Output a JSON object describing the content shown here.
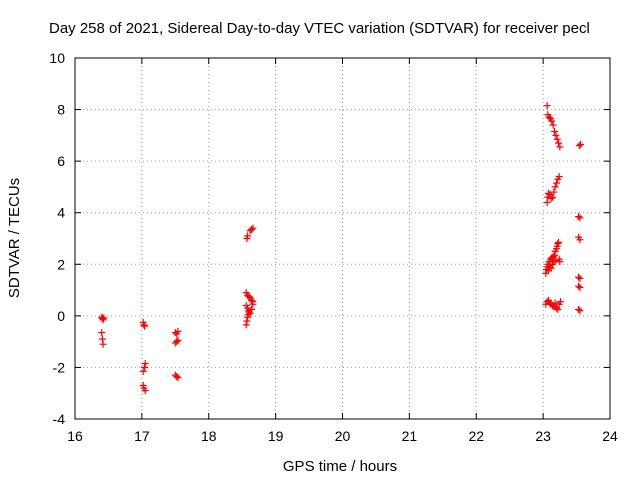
{
  "chart_data": {
    "type": "scatter",
    "title": "Day 258 of 2021, Sidereal Day-to-day VTEC variation (SDTVAR) for receiver pecl",
    "xlabel": "GPS time / hours",
    "ylabel": "SDTVAR / TECUs",
    "xlim": [
      16,
      24
    ],
    "ylim": [
      -4,
      10
    ],
    "xticks": [
      16,
      17,
      18,
      19,
      20,
      21,
      22,
      23,
      24
    ],
    "yticks": [
      -4,
      -2,
      0,
      2,
      4,
      6,
      8,
      10
    ],
    "grid": true,
    "marker": "+",
    "color": "#ff0000",
    "series": [
      {
        "name": "SDTVAR",
        "points": [
          [
            16.4,
            -0.05
          ],
          [
            16.41,
            -0.1
          ],
          [
            16.42,
            -0.15
          ],
          [
            16.43,
            -0.08
          ],
          [
            16.4,
            -0.65
          ],
          [
            16.41,
            -0.9
          ],
          [
            16.42,
            -1.1
          ],
          [
            17.02,
            -0.25
          ],
          [
            17.03,
            -0.35
          ],
          [
            17.04,
            -0.4
          ],
          [
            17.02,
            -2.15
          ],
          [
            17.04,
            -2.0
          ],
          [
            17.05,
            -1.85
          ],
          [
            17.02,
            -2.7
          ],
          [
            17.03,
            -2.8
          ],
          [
            17.05,
            -2.9
          ],
          [
            17.5,
            -0.65
          ],
          [
            17.52,
            -0.7
          ],
          [
            17.54,
            -0.6
          ],
          [
            17.5,
            -1.05
          ],
          [
            17.52,
            -1.0
          ],
          [
            17.54,
            -0.95
          ],
          [
            17.5,
            -2.3
          ],
          [
            17.52,
            -2.35
          ],
          [
            17.54,
            -2.4
          ],
          [
            18.57,
            3.0
          ],
          [
            18.58,
            3.1
          ],
          [
            18.62,
            3.3
          ],
          [
            18.64,
            3.35
          ],
          [
            18.66,
            3.4
          ],
          [
            18.56,
            0.9
          ],
          [
            18.58,
            0.8
          ],
          [
            18.6,
            0.75
          ],
          [
            18.62,
            0.7
          ],
          [
            18.64,
            0.6
          ],
          [
            18.66,
            0.55
          ],
          [
            18.56,
            0.4
          ],
          [
            18.58,
            0.3
          ],
          [
            18.6,
            0.2
          ],
          [
            18.62,
            0.1
          ],
          [
            18.64,
            0.25
          ],
          [
            18.66,
            0.45
          ],
          [
            18.56,
            -0.35
          ],
          [
            18.57,
            -0.2
          ],
          [
            18.58,
            -0.05
          ],
          [
            18.59,
            0.05
          ],
          [
            18.6,
            0.15
          ],
          [
            23.06,
            8.15
          ],
          [
            23.07,
            7.8
          ],
          [
            23.09,
            7.7
          ],
          [
            23.11,
            7.65
          ],
          [
            23.13,
            7.55
          ],
          [
            23.15,
            7.4
          ],
          [
            23.17,
            7.15
          ],
          [
            23.19,
            7.0
          ],
          [
            23.21,
            6.85
          ],
          [
            23.23,
            6.7
          ],
          [
            23.25,
            6.55
          ],
          [
            23.06,
            4.4
          ],
          [
            23.07,
            4.6
          ],
          [
            23.08,
            4.75
          ],
          [
            23.1,
            4.7
          ],
          [
            23.12,
            4.55
          ],
          [
            23.14,
            4.6
          ],
          [
            23.16,
            4.8
          ],
          [
            23.18,
            5.0
          ],
          [
            23.2,
            5.15
          ],
          [
            23.22,
            5.3
          ],
          [
            23.24,
            5.4
          ],
          [
            23.04,
            1.65
          ],
          [
            23.05,
            1.8
          ],
          [
            23.06,
            1.9
          ],
          [
            23.07,
            2.0
          ],
          [
            23.08,
            1.75
          ],
          [
            23.09,
            2.1
          ],
          [
            23.1,
            1.95
          ],
          [
            23.11,
            2.2
          ],
          [
            23.12,
            1.85
          ],
          [
            23.13,
            2.25
          ],
          [
            23.14,
            2.0
          ],
          [
            23.15,
            2.3
          ],
          [
            23.16,
            2.1
          ],
          [
            23.17,
            2.35
          ],
          [
            23.18,
            2.5
          ],
          [
            23.19,
            2.15
          ],
          [
            23.2,
            2.6
          ],
          [
            23.21,
            2.7
          ],
          [
            23.22,
            2.8
          ],
          [
            23.23,
            2.85
          ],
          [
            23.24,
            2.2
          ],
          [
            23.25,
            2.1
          ],
          [
            23.04,
            0.45
          ],
          [
            23.06,
            0.55
          ],
          [
            23.08,
            0.6
          ],
          [
            23.1,
            0.5
          ],
          [
            23.12,
            0.45
          ],
          [
            23.14,
            0.4
          ],
          [
            23.16,
            0.35
          ],
          [
            23.18,
            0.5
          ],
          [
            23.2,
            0.3
          ],
          [
            23.22,
            0.25
          ],
          [
            23.24,
            0.45
          ],
          [
            23.26,
            0.55
          ],
          [
            23.54,
            6.6
          ],
          [
            23.56,
            6.65
          ],
          [
            23.53,
            3.85
          ],
          [
            23.55,
            3.8
          ],
          [
            23.53,
            3.05
          ],
          [
            23.55,
            2.95
          ],
          [
            23.53,
            1.5
          ],
          [
            23.55,
            1.45
          ],
          [
            23.53,
            1.15
          ],
          [
            23.55,
            1.1
          ],
          [
            23.53,
            0.25
          ],
          [
            23.55,
            0.2
          ]
        ]
      }
    ]
  }
}
